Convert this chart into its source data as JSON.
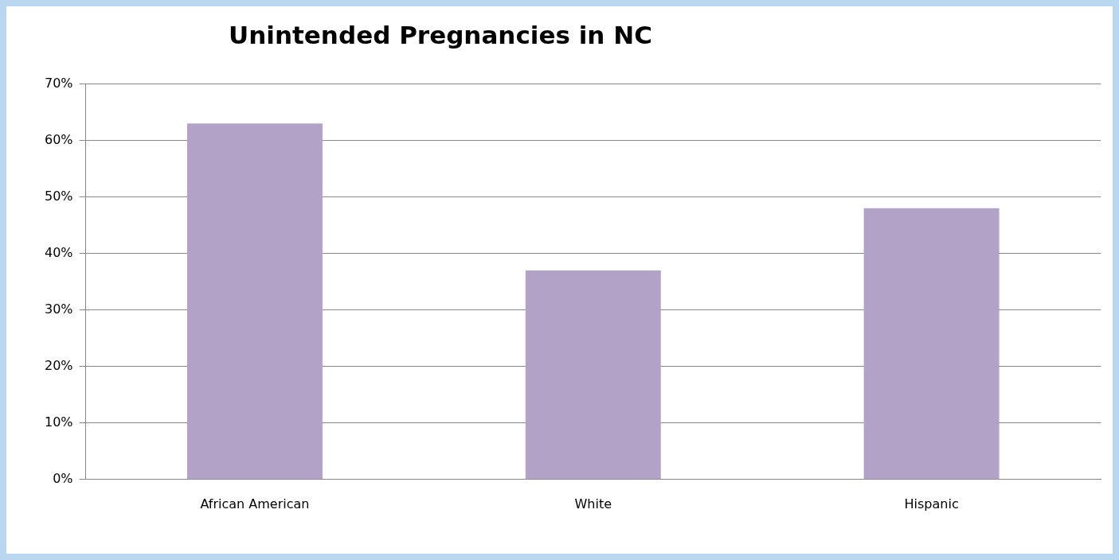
{
  "chart_data": {
    "type": "bar",
    "title": "Unintended Pregnancies in NC",
    "categories": [
      "African American",
      "White",
      "Hispanic"
    ],
    "values": [
      63,
      37,
      48
    ],
    "color": "#b2a2c7",
    "ylim": [
      0,
      70
    ],
    "yticks": [
      {
        "value": 0,
        "label": "0%"
      },
      {
        "value": 10,
        "label": "10%"
      },
      {
        "value": 20,
        "label": "20%"
      },
      {
        "value": 30,
        "label": "30%"
      },
      {
        "value": 40,
        "label": "40%"
      },
      {
        "value": 50,
        "label": "50%"
      },
      {
        "value": 60,
        "label": "60%"
      },
      {
        "value": 70,
        "label": "70%"
      }
    ],
    "grid": "y",
    "legend": false
  }
}
